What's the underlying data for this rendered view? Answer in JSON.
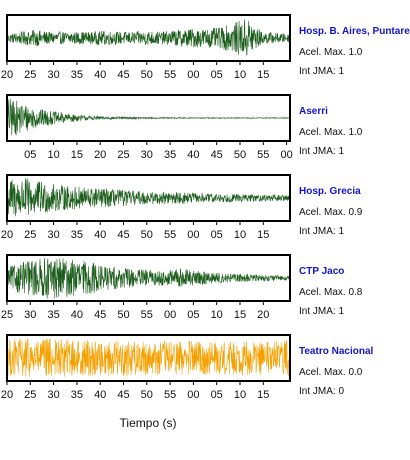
{
  "chart_data": {
    "type": "line",
    "xlabel": "Tiempo (s)",
    "panels": [
      {
        "station": "Hosp. B. Aires, Puntare",
        "acel_label": "Acel. Max. 1.0",
        "jma_label": "Int JMA: 1",
        "color": "#1a5c1a",
        "ticks": [
          "20",
          "25",
          "30",
          "35",
          "40",
          "45",
          "50",
          "55",
          "00",
          "05",
          "10",
          "15"
        ],
        "tick_start": 0,
        "amplitude_envelope": [
          0.2,
          0.3,
          0.4,
          0.3,
          0.3,
          0.3,
          0.3,
          0.35,
          0.3,
          0.3,
          0.35,
          0.3,
          0.4,
          0.45,
          0.45,
          0.5,
          0.7,
          1.0,
          0.3,
          0.25,
          0.2
        ]
      },
      {
        "station": "Aserri",
        "acel_label": "Acel. Max. 1.0",
        "jma_label": "Int JMA: 1",
        "color": "#1a5c1a",
        "ticks": [
          "05",
          "10",
          "15",
          "20",
          "25",
          "30",
          "35",
          "40",
          "45",
          "50",
          "55",
          "00"
        ],
        "tick_start": 1,
        "amplitude_envelope": [
          1.0,
          0.75,
          0.5,
          0.35,
          0.25,
          0.15,
          0.1,
          0.07,
          0.05,
          0.04,
          0.03,
          0.03,
          0.03,
          0.02,
          0.02,
          0.02,
          0.02,
          0.02,
          0.02,
          0.02,
          0.02
        ]
      },
      {
        "station": "Hosp. Grecia",
        "acel_label": "Acel. Max. 0.9",
        "jma_label": "Int JMA: 1",
        "color": "#1a5c1a",
        "ticks": [
          "20",
          "25",
          "30",
          "35",
          "40",
          "45",
          "50",
          "55",
          "00",
          "05",
          "10",
          "15"
        ],
        "tick_start": 0,
        "amplitude_envelope": [
          0.9,
          1.0,
          0.85,
          0.7,
          0.6,
          0.55,
          0.5,
          0.45,
          0.4,
          0.35,
          0.3,
          0.3,
          0.28,
          0.25,
          0.22,
          0.2,
          0.2,
          0.18,
          0.16,
          0.15,
          0.15
        ]
      },
      {
        "station": "CTP Jaco",
        "acel_label": "Acel. Max. 0.8",
        "jma_label": "Int JMA: 1",
        "color": "#1a5c1a",
        "ticks": [
          "25",
          "30",
          "35",
          "40",
          "45",
          "50",
          "55",
          "00",
          "05",
          "10",
          "15",
          "20"
        ],
        "tick_start": 0,
        "amplitude_envelope": [
          0.5,
          0.75,
          0.9,
          1.0,
          0.95,
          0.85,
          0.75,
          0.6,
          0.5,
          0.45,
          0.4,
          0.35,
          0.45,
          0.4,
          0.3,
          0.25,
          0.2,
          0.2,
          0.15,
          0.12,
          0.1
        ]
      },
      {
        "station": "Teatro Nacional",
        "acel_label": "Acel. Max. 0.0",
        "jma_label": "Int JMA: 0",
        "color": "#f5a100",
        "ticks": [
          "20",
          "25",
          "30",
          "35",
          "40",
          "45",
          "50",
          "55",
          "00",
          "05",
          "10",
          "15"
        ],
        "tick_start": 0,
        "amplitude_envelope": [
          0.9,
          0.95,
          0.9,
          0.95,
          0.9,
          0.85,
          0.9,
          0.85,
          0.9,
          0.85,
          0.8,
          0.85,
          0.8,
          0.85,
          0.8,
          0.8,
          0.8,
          0.85,
          0.8,
          0.85,
          0.9
        ]
      }
    ]
  },
  "colors": {
    "station_label": "#1414c8",
    "frame": "#000000"
  }
}
